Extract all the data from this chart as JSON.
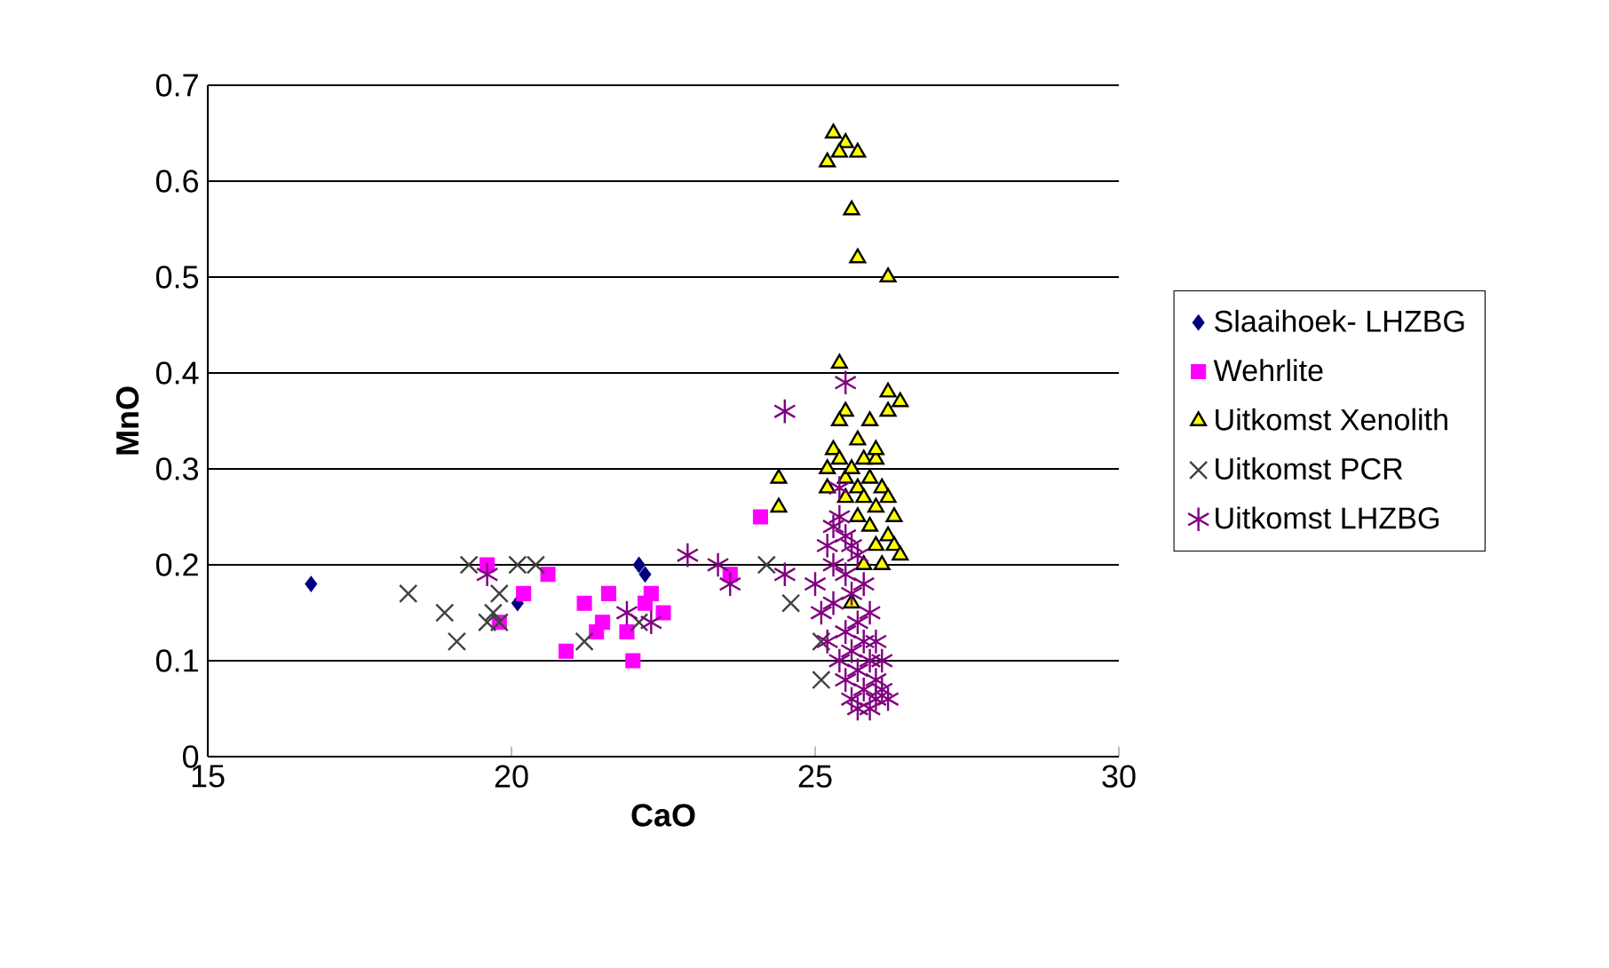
{
  "chart_data": {
    "type": "scatter",
    "xlabel": "CaO",
    "ylabel": "MnO",
    "xlim": [
      15,
      30
    ],
    "xticks": [
      15,
      20,
      25,
      30
    ],
    "ylim": [
      0,
      0.7
    ],
    "yticks": [
      0,
      0.1,
      0.2,
      0.3,
      0.4,
      0.5,
      0.6,
      0.7
    ],
    "grid": "y",
    "legend": "right",
    "series": [
      {
        "name": "Slaaihoek- LHZBG",
        "color": "#000080",
        "marker": "diamond",
        "x": [
          16.7,
          20.1,
          22.1,
          22.2
        ],
        "values": [
          0.18,
          0.16,
          0.2,
          0.19
        ]
      },
      {
        "name": "Wehrlite",
        "color": "#ff00ff",
        "marker": "square",
        "x": [
          19.6,
          20.6,
          20.2,
          19.8,
          21.2,
          21.6,
          21.5,
          21.4,
          21.9,
          20.9,
          22.0,
          22.3,
          22.5,
          22.2,
          24.1,
          23.6
        ],
        "values": [
          0.2,
          0.19,
          0.17,
          0.14,
          0.16,
          0.17,
          0.14,
          0.13,
          0.13,
          0.11,
          0.1,
          0.17,
          0.15,
          0.16,
          0.25,
          0.19
        ]
      },
      {
        "name": "Uitkomst Xenolith",
        "color": "#ffff00",
        "marker": "triangle",
        "x": [
          25.3,
          25.5,
          25.4,
          25.2,
          25.7,
          25.6,
          25.7,
          26.2,
          25.4,
          26.2,
          26.4,
          26.2,
          25.9,
          25.5,
          25.4,
          25.7,
          24.4,
          24.4,
          25.2,
          25.2,
          25.3,
          25.4,
          25.5,
          25.5,
          25.6,
          25.7,
          25.7,
          25.8,
          25.8,
          25.9,
          25.9,
          26.0,
          26.0,
          26.0,
          26.1,
          26.1,
          26.2,
          26.2,
          26.3,
          26.3,
          26.4,
          25.6,
          25.8,
          26.0
        ],
        "values": [
          0.65,
          0.64,
          0.63,
          0.62,
          0.63,
          0.57,
          0.52,
          0.5,
          0.41,
          0.38,
          0.37,
          0.36,
          0.35,
          0.36,
          0.35,
          0.33,
          0.29,
          0.26,
          0.3,
          0.28,
          0.32,
          0.31,
          0.29,
          0.27,
          0.3,
          0.28,
          0.25,
          0.31,
          0.27,
          0.29,
          0.24,
          0.31,
          0.26,
          0.22,
          0.28,
          0.2,
          0.27,
          0.23,
          0.25,
          0.22,
          0.21,
          0.16,
          0.2,
          0.32
        ]
      },
      {
        "name": "Uitkomst PCR",
        "color": "#404040",
        "marker": "cross",
        "x": [
          18.3,
          18.9,
          19.1,
          19.3,
          20.1,
          20.4,
          19.7,
          19.8,
          19.6,
          19.8,
          21.2,
          22.1,
          24.2,
          24.6,
          25.1,
          25.1
        ],
        "values": [
          0.17,
          0.15,
          0.12,
          0.2,
          0.2,
          0.2,
          0.15,
          0.17,
          0.14,
          0.14,
          0.12,
          0.14,
          0.2,
          0.16,
          0.12,
          0.08
        ]
      },
      {
        "name": "Uitkomst LHZBG",
        "color": "#800080",
        "x": [
          19.6,
          21.9,
          22.3,
          22.9,
          23.4,
          23.6,
          24.5,
          24.5,
          25.5,
          25.0,
          25.1,
          25.2,
          25.2,
          25.3,
          25.3,
          25.3,
          25.4,
          25.4,
          25.5,
          25.5,
          25.5,
          25.5,
          25.6,
          25.6,
          25.6,
          25.6,
          25.7,
          25.7,
          25.7,
          25.7,
          25.8,
          25.8,
          25.8,
          25.9,
          25.9,
          25.9,
          26.0,
          26.0,
          26.0,
          26.1,
          26.1,
          26.2,
          25.4
        ],
        "values": [
          0.19,
          0.15,
          0.14,
          0.21,
          0.2,
          0.18,
          0.36,
          0.19,
          0.39,
          0.18,
          0.15,
          0.22,
          0.12,
          0.24,
          0.2,
          0.16,
          0.25,
          0.1,
          0.23,
          0.19,
          0.13,
          0.08,
          0.22,
          0.17,
          0.11,
          0.06,
          0.21,
          0.14,
          0.09,
          0.05,
          0.18,
          0.12,
          0.07,
          0.15,
          0.1,
          0.05,
          0.12,
          0.08,
          0.06,
          0.1,
          0.07,
          0.06,
          0.28
        ]
      }
    ]
  }
}
